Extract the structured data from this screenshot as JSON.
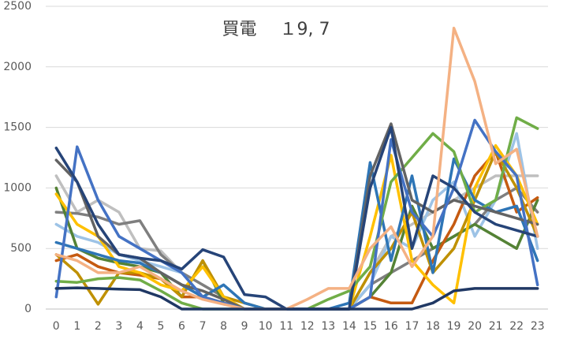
{
  "chart_data": {
    "type": "line",
    "title": "買電　 １9, 7",
    "categories": [
      "0",
      "1",
      "2",
      "3",
      "4",
      "5",
      "6",
      "7",
      "8",
      "9",
      "10",
      "11",
      "12",
      "13",
      "14",
      "15",
      "16",
      "17",
      "18",
      "19",
      "20",
      "21",
      "22",
      "23"
    ],
    "ylim": [
      0,
      2500
    ],
    "yticks": [
      0,
      500,
      1000,
      1500,
      2000,
      2500
    ],
    "grid": true,
    "series": [
      {
        "color": "#bfbfbf",
        "values": [
          1100,
          800,
          900,
          800,
          500,
          480,
          300,
          100,
          50,
          0,
          0,
          0,
          0,
          0,
          0,
          300,
          600,
          700,
          800,
          900,
          1000,
          1100,
          1100,
          1100
        ]
      },
      {
        "color": "#7f7f7f",
        "values": [
          800,
          790,
          760,
          700,
          730,
          450,
          300,
          200,
          100,
          0,
          0,
          0,
          0,
          0,
          0,
          200,
          300,
          400,
          500,
          600,
          700,
          900,
          1000,
          800
        ]
      },
      {
        "color": "#9dc3e6",
        "values": [
          700,
          600,
          550,
          450,
          400,
          350,
          300,
          100,
          50,
          0,
          0,
          0,
          0,
          0,
          0,
          200,
          600,
          500,
          900,
          1050,
          600,
          900,
          1450,
          500
        ]
      },
      {
        "color": "#548235",
        "values": [
          1000,
          500,
          420,
          380,
          350,
          300,
          100,
          400,
          50,
          0,
          0,
          0,
          0,
          0,
          0,
          100,
          300,
          850,
          500,
          600,
          700,
          600,
          500,
          900
        ]
      },
      {
        "color": "#c55a11",
        "values": [
          400,
          450,
          350,
          300,
          280,
          250,
          100,
          100,
          50,
          0,
          0,
          0,
          0,
          0,
          0,
          100,
          50,
          50,
          400,
          700,
          1100,
          1300,
          800,
          920
        ]
      },
      {
        "color": "#bf9000",
        "values": [
          450,
          300,
          40,
          300,
          300,
          250,
          100,
          400,
          100,
          50,
          0,
          0,
          0,
          0,
          0,
          300,
          500,
          800,
          300,
          500,
          900,
          1300,
          1000,
          600
        ]
      },
      {
        "color": "#ffc000",
        "values": [
          950,
          700,
          600,
          350,
          300,
          200,
          150,
          350,
          100,
          0,
          0,
          0,
          0,
          0,
          0,
          600,
          1270,
          400,
          200,
          50,
          1000,
          1350,
          1100,
          700
        ]
      },
      {
        "color": "#2e75b6",
        "values": [
          550,
          500,
          450,
          400,
          380,
          300,
          200,
          100,
          200,
          50,
          0,
          0,
          0,
          0,
          50,
          1210,
          400,
          1100,
          300,
          1240,
          900,
          800,
          850,
          400
        ]
      },
      {
        "color": "#70ad47",
        "values": [
          230,
          220,
          250,
          260,
          240,
          150,
          50,
          0,
          0,
          0,
          0,
          0,
          0,
          80,
          150,
          350,
          1050,
          1250,
          1450,
          1300,
          800,
          900,
          1580,
          1490
        ]
      },
      {
        "color": "#636363",
        "values": [
          1230,
          1050,
          600,
          450,
          420,
          300,
          200,
          150,
          80,
          0,
          0,
          0,
          0,
          0,
          0,
          1100,
          1530,
          900,
          800,
          900,
          850,
          800,
          750,
          700
        ]
      },
      {
        "color": "#4472c4",
        "values": [
          100,
          1340,
          900,
          600,
          500,
          400,
          300,
          100,
          50,
          0,
          0,
          0,
          0,
          0,
          0,
          100,
          1400,
          800,
          600,
          1000,
          1560,
          1300,
          1100,
          200
        ]
      },
      {
        "color": "#264478",
        "values": [
          1330,
          1050,
          700,
          450,
          420,
          400,
          330,
          490,
          430,
          120,
          100,
          0,
          0,
          0,
          0,
          1000,
          1500,
          500,
          1100,
          1000,
          800,
          700,
          650,
          600
        ]
      },
      {
        "color": "#f4b183",
        "values": [
          450,
          400,
          300,
          300,
          350,
          250,
          150,
          80,
          40,
          0,
          0,
          0,
          80,
          170,
          170,
          500,
          680,
          350,
          600,
          2320,
          1880,
          1200,
          1320,
          600
        ]
      },
      {
        "color": "#203864",
        "values": [
          170,
          175,
          170,
          165,
          160,
          100,
          0,
          0,
          0,
          0,
          0,
          0,
          0,
          0,
          0,
          0,
          0,
          0,
          50,
          150,
          170,
          170,
          170,
          170
        ]
      }
    ]
  }
}
